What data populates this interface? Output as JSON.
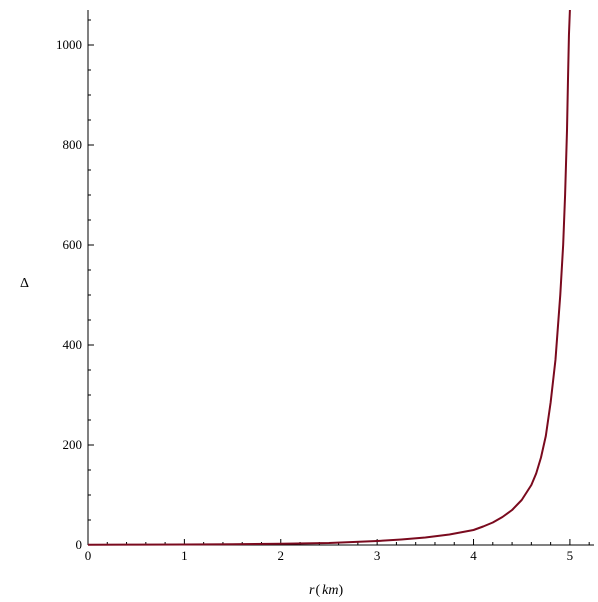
{
  "chart_data": {
    "type": "line",
    "title": "",
    "xlabel_parts": {
      "var": "r",
      "open": "(",
      "unit": "km",
      "close": ")"
    },
    "ylabel": "Δ",
    "xlim": [
      0,
      5.25
    ],
    "ylim": [
      0,
      1070
    ],
    "x_ticks": [
      0,
      1,
      2,
      3,
      4,
      5
    ],
    "y_ticks": [
      0,
      200,
      400,
      600,
      800,
      1000
    ],
    "grid": false,
    "legend": "none",
    "line_color": "#7a0a1e",
    "series": [
      {
        "x": [
          0,
          0.5,
          1,
          1.5,
          2,
          2.5,
          3,
          3.25,
          3.5,
          3.75,
          4,
          4.1,
          4.2,
          4.3,
          4.4,
          4.5,
          4.6,
          4.65,
          4.7,
          4.75,
          4.8,
          4.85,
          4.9,
          4.93,
          4.95,
          4.97,
          4.98,
          4.99,
          5.0
        ],
        "y": [
          0.5,
          0.7,
          1,
          1.5,
          2.5,
          4,
          8,
          11,
          15,
          21,
          30,
          37,
          45,
          56,
          70,
          90,
          120,
          143,
          175,
          218,
          285,
          370,
          500,
          600,
          700,
          830,
          930,
          1020,
          1070
        ]
      }
    ]
  }
}
